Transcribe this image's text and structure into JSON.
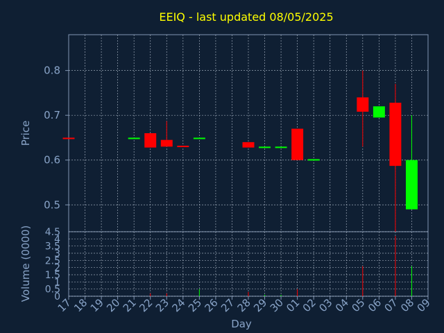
{
  "chart_data": {
    "type": "candlestick",
    "title": "EEIQ - last updated 08/05/2025",
    "xlabel": "Day",
    "price_panel": {
      "ylabel": "Price",
      "ylim": [
        0.44,
        0.88
      ],
      "yticks": [
        0.5,
        0.6,
        0.7,
        0.8
      ]
    },
    "volume_panel": {
      "ylabel": "Volume (0000)",
      "ylim": [
        0,
        4.5
      ],
      "yticks": [
        0,
        0.5,
        1,
        1.5,
        2,
        2.5,
        3,
        3.5,
        4,
        4.5
      ]
    },
    "x_ticks": [
      "17",
      "18",
      "19",
      "20",
      "21",
      "22",
      "23",
      "24",
      "25",
      "26",
      "27",
      "28",
      "29",
      "30",
      "01",
      "02",
      "03",
      "04",
      "05",
      "06",
      "07",
      "08",
      "09"
    ],
    "candles": [
      {
        "day": "17",
        "open": 0.65,
        "high": 0.65,
        "low": 0.65,
        "close": 0.648,
        "volume": 0.0
      },
      {
        "day": "21",
        "open": 0.648,
        "high": 0.65,
        "low": 0.648,
        "close": 0.65,
        "volume": 0.0
      },
      {
        "day": "22",
        "open": 0.66,
        "high": 0.66,
        "low": 0.628,
        "close": 0.628,
        "volume": 0.2
      },
      {
        "day": "23",
        "open": 0.645,
        "high": 0.687,
        "low": 0.63,
        "close": 0.63,
        "volume": 0.2
      },
      {
        "day": "24",
        "open": 0.632,
        "high": 0.632,
        "low": 0.63,
        "close": 0.63,
        "volume": 0.0
      },
      {
        "day": "25",
        "open": 0.648,
        "high": 0.65,
        "low": 0.648,
        "close": 0.65,
        "volume": 0.5
      },
      {
        "day": "28",
        "open": 0.64,
        "high": 0.64,
        "low": 0.628,
        "close": 0.628,
        "volume": 0.3
      },
      {
        "day": "29",
        "open": 0.628,
        "high": 0.63,
        "low": 0.628,
        "close": 0.63,
        "volume": 0.1
      },
      {
        "day": "30",
        "open": 0.628,
        "high": 0.63,
        "low": 0.628,
        "close": 0.63,
        "volume": 0.1
      },
      {
        "day": "01",
        "open": 0.67,
        "high": 0.67,
        "low": 0.6,
        "close": 0.6,
        "volume": 0.5
      },
      {
        "day": "02",
        "open": 0.6,
        "high": 0.602,
        "low": 0.6,
        "close": 0.602,
        "volume": 0.0
      },
      {
        "day": "05",
        "open": 0.74,
        "high": 0.8,
        "low": 0.63,
        "close": 0.708,
        "volume": 2.1
      },
      {
        "day": "06",
        "open": 0.695,
        "high": 0.72,
        "low": 0.695,
        "close": 0.72,
        "volume": 0.0
      },
      {
        "day": "07",
        "open": 0.728,
        "high": 0.77,
        "low": 0.44,
        "close": 0.587,
        "volume": 4.2
      },
      {
        "day": "08",
        "open": 0.49,
        "high": 0.7,
        "low": 0.49,
        "close": 0.6,
        "volume": 2.1
      }
    ],
    "colors": {
      "up": "#00ff00",
      "down": "#ff0000",
      "background": "#0f1f33",
      "title": "#ffff00",
      "text": "#88a3c7"
    },
    "grid": true
  }
}
